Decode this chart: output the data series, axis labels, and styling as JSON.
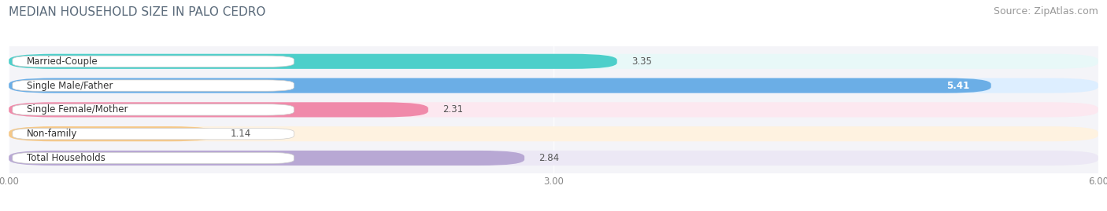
{
  "title": "MEDIAN HOUSEHOLD SIZE IN PALO CEDRO",
  "source": "Source: ZipAtlas.com",
  "categories": [
    "Married-Couple",
    "Single Male/Father",
    "Single Female/Mother",
    "Non-family",
    "Total Households"
  ],
  "values": [
    3.35,
    5.41,
    2.31,
    1.14,
    2.84
  ],
  "bar_colors": [
    "#4dcfca",
    "#6baee6",
    "#f08aaa",
    "#f5c888",
    "#b8a8d4"
  ],
  "bar_bg_colors": [
    "#e8f8f8",
    "#ddeeff",
    "#fce8f0",
    "#fef2e0",
    "#ece8f5"
  ],
  "xlim": [
    0,
    6.0
  ],
  "xticks": [
    0.0,
    3.0,
    6.0
  ],
  "xtick_labels": [
    "0.00",
    "3.00",
    "6.00"
  ],
  "value_inside": [
    false,
    true,
    false,
    false,
    false
  ],
  "title_fontsize": 11,
  "source_fontsize": 9,
  "bar_label_fontsize": 8.5,
  "value_fontsize": 8.5,
  "background_color": "#ffffff",
  "bar_area_bg": "#f4f4f8"
}
